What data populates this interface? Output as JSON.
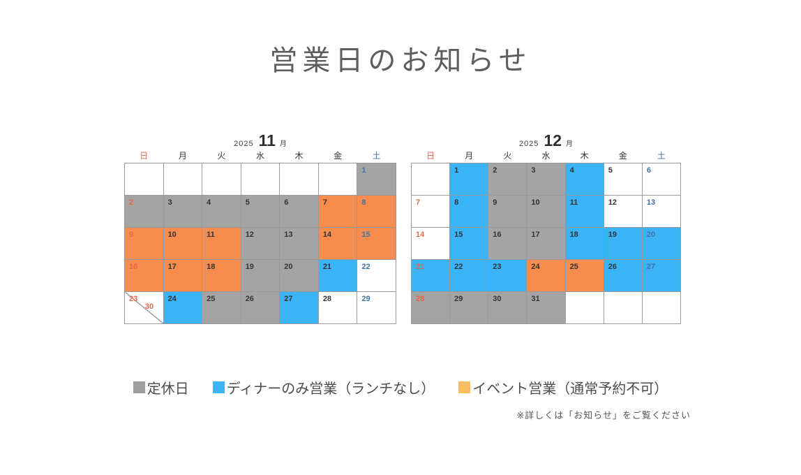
{
  "page": {
    "title": "営業日のお知らせ",
    "background": "#ffffff"
  },
  "note": "※詳しくは「お知らせ」をご覧ください",
  "weekdays": [
    {
      "label": "日",
      "type": "sun"
    },
    {
      "label": "月",
      "type": "weekday"
    },
    {
      "label": "火",
      "type": "weekday"
    },
    {
      "label": "水",
      "type": "weekday"
    },
    {
      "label": "木",
      "type": "weekday"
    },
    {
      "label": "金",
      "type": "weekday"
    },
    {
      "label": "土",
      "type": "sat"
    }
  ],
  "text_colors": {
    "sun": "#e8654a",
    "sat": "#3e74a6",
    "weekday": "#333333"
  },
  "status_colors": {
    "closed": "#a4a4a4",
    "dinner": "#3ab4f7",
    "event": "#f68c4e",
    "open": "#ffffff"
  },
  "border_color": "#999999",
  "legend": {
    "items": [
      {
        "key": "closed",
        "label": "定休日",
        "color": "#9e9e9e"
      },
      {
        "key": "dinner",
        "label": "ディナーのみ営業（ランチなし）",
        "color": "#3cb5f8"
      },
      {
        "key": "event",
        "label": "イベント営業（通常予約不可）",
        "color": "#f9be62"
      }
    ]
  },
  "calendars": [
    {
      "id": "november",
      "year": "2025",
      "month": "11",
      "month_suffix": "月",
      "weeks": [
        [
          null,
          null,
          null,
          null,
          null,
          null,
          {
            "day": "1",
            "status": "closed"
          }
        ],
        [
          {
            "day": "2",
            "status": "closed"
          },
          {
            "day": "3",
            "status": "closed"
          },
          {
            "day": "4",
            "status": "closed"
          },
          {
            "day": "5",
            "status": "closed"
          },
          {
            "day": "6",
            "status": "closed"
          },
          {
            "day": "7",
            "status": "event"
          },
          {
            "day": "8",
            "status": "event"
          }
        ],
        [
          {
            "day": "9",
            "status": "event"
          },
          {
            "day": "10",
            "status": "event"
          },
          {
            "day": "11",
            "status": "event"
          },
          {
            "day": "12",
            "status": "closed"
          },
          {
            "day": "13",
            "status": "closed"
          },
          {
            "day": "14",
            "status": "event"
          },
          {
            "day": "15",
            "status": "event"
          }
        ],
        [
          {
            "day": "16",
            "status": "event"
          },
          {
            "day": "17",
            "status": "event"
          },
          {
            "day": "18",
            "status": "event"
          },
          {
            "day": "19",
            "status": "closed"
          },
          {
            "day": "20",
            "status": "closed"
          },
          {
            "day": "21",
            "status": "dinner"
          },
          {
            "day": "22",
            "status": "open"
          }
        ],
        [
          {
            "day": "23",
            "day2": "30",
            "split": true,
            "status": "open"
          },
          {
            "day": "24",
            "status": "dinner"
          },
          {
            "day": "25",
            "status": "closed"
          },
          {
            "day": "26",
            "status": "closed"
          },
          {
            "day": "27",
            "status": "dinner"
          },
          {
            "day": "28",
            "status": "open"
          },
          {
            "day": "29",
            "status": "open"
          }
        ]
      ]
    },
    {
      "id": "december",
      "year": "2025",
      "month": "12",
      "month_suffix": "月",
      "weeks": [
        [
          null,
          {
            "day": "1",
            "status": "dinner"
          },
          {
            "day": "2",
            "status": "closed"
          },
          {
            "day": "3",
            "status": "closed"
          },
          {
            "day": "4",
            "status": "dinner"
          },
          {
            "day": "5",
            "status": "open"
          },
          {
            "day": "6",
            "status": "open"
          }
        ],
        [
          {
            "day": "7",
            "status": "open"
          },
          {
            "day": "8",
            "status": "dinner"
          },
          {
            "day": "9",
            "status": "closed"
          },
          {
            "day": "10",
            "status": "closed"
          },
          {
            "day": "11",
            "status": "dinner"
          },
          {
            "day": "12",
            "status": "open"
          },
          {
            "day": "13",
            "status": "open"
          }
        ],
        [
          {
            "day": "14",
            "status": "open"
          },
          {
            "day": "15",
            "status": "dinner"
          },
          {
            "day": "16",
            "status": "closed"
          },
          {
            "day": "17",
            "status": "closed"
          },
          {
            "day": "18",
            "status": "dinner"
          },
          {
            "day": "19",
            "status": "dinner"
          },
          {
            "day": "20",
            "status": "dinner"
          }
        ],
        [
          {
            "day": "21",
            "status": "dinner"
          },
          {
            "day": "22",
            "status": "dinner"
          },
          {
            "day": "23",
            "status": "dinner"
          },
          {
            "day": "24",
            "status": "event"
          },
          {
            "day": "25",
            "status": "event"
          },
          {
            "day": "26",
            "status": "dinner"
          },
          {
            "day": "27",
            "status": "dinner"
          }
        ],
        [
          {
            "day": "28",
            "status": "closed"
          },
          {
            "day": "29",
            "status": "closed"
          },
          {
            "day": "30",
            "status": "closed"
          },
          {
            "day": "31",
            "status": "closed"
          },
          null,
          null,
          null
        ]
      ]
    }
  ]
}
